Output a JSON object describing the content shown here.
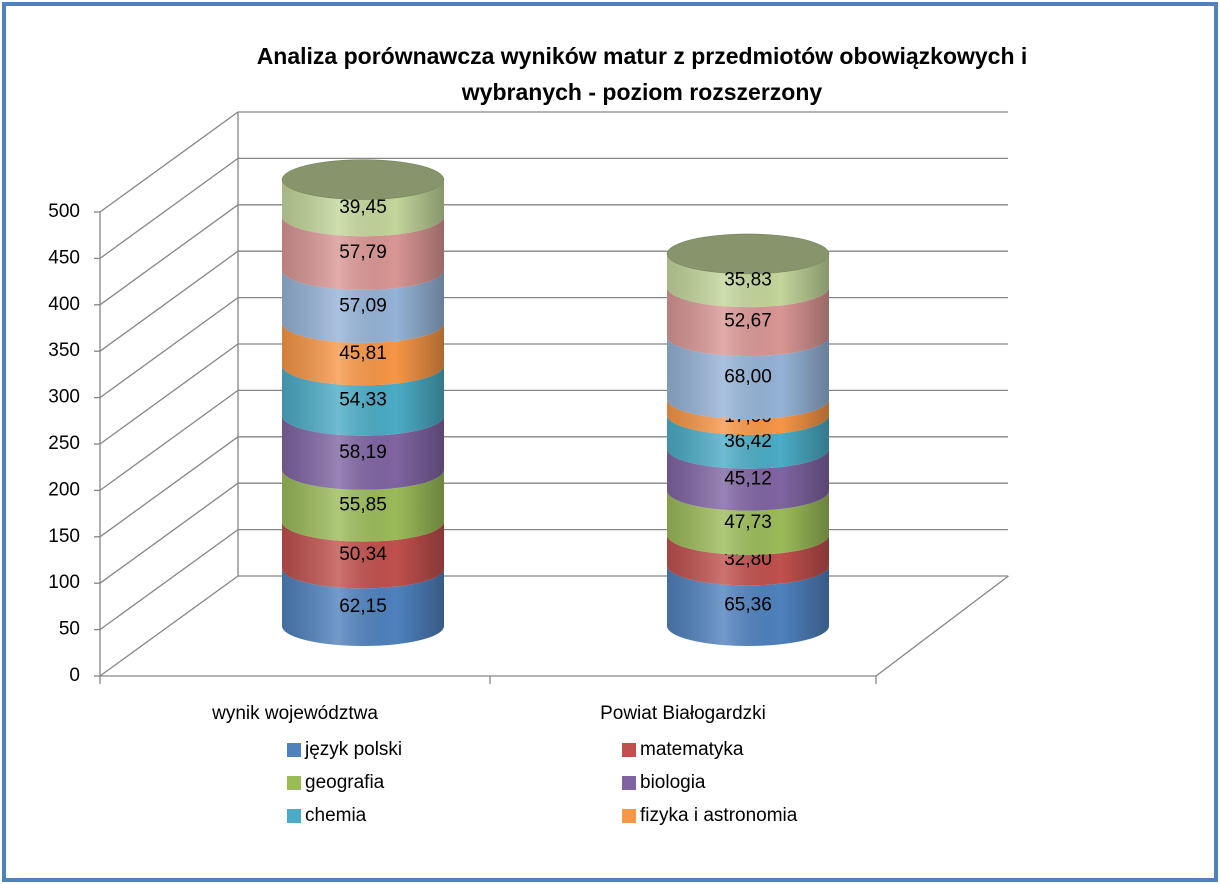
{
  "chart_data": {
    "type": "stacked-cylinder",
    "title": "Analiza porównawcza wyników matur z przedmiotów obowiązkowych i wybranych - poziom rozszerzony",
    "categories": [
      "wynik województwa",
      "Powiat Białogardzki"
    ],
    "series": [
      {
        "name": "język polski",
        "color": "#4f81bd",
        "values": [
          62.15,
          65.36
        ],
        "value_labels": [
          "62,15",
          "65,36"
        ]
      },
      {
        "name": "matematyka",
        "color": "#c0504d",
        "values": [
          50.34,
          32.8
        ],
        "value_labels": [
          "50,34",
          "32,80"
        ]
      },
      {
        "name": "geografia",
        "color": "#9bbb59",
        "values": [
          55.85,
          47.73
        ],
        "value_labels": [
          "55,85",
          "47,73"
        ]
      },
      {
        "name": "biologia",
        "color": "#8064a2",
        "values": [
          58.19,
          45.12
        ],
        "value_labels": [
          "58,19",
          "45,12"
        ]
      },
      {
        "name": "chemia",
        "color": "#4bacc6",
        "values": [
          54.33,
          36.42
        ],
        "value_labels": [
          "54,33",
          "36,42"
        ]
      },
      {
        "name": "fizyka i astronomia",
        "color": "#f79646",
        "values": [
          45.81,
          17
        ],
        "value_labels": [
          "45,81",
          "17,00"
        ]
      },
      {
        "name": null,
        "color": "#95b3d7",
        "values": [
          57.09,
          68
        ],
        "value_labels": [
          "57,09",
          "68,00"
        ]
      },
      {
        "name": null,
        "color": "#d99694",
        "values": [
          57.79,
          52.67
        ],
        "value_labels": [
          "57,79",
          "52,67"
        ]
      },
      {
        "name": null,
        "color": "#c3d69b",
        "values": [
          39.45,
          35.83
        ],
        "value_labels": [
          "39,45",
          "35,83"
        ]
      }
    ],
    "ylim": [
      0,
      500
    ],
    "yticks": [
      0,
      50,
      100,
      150,
      200,
      250,
      300,
      350,
      400,
      450,
      500
    ],
    "grid": true
  }
}
